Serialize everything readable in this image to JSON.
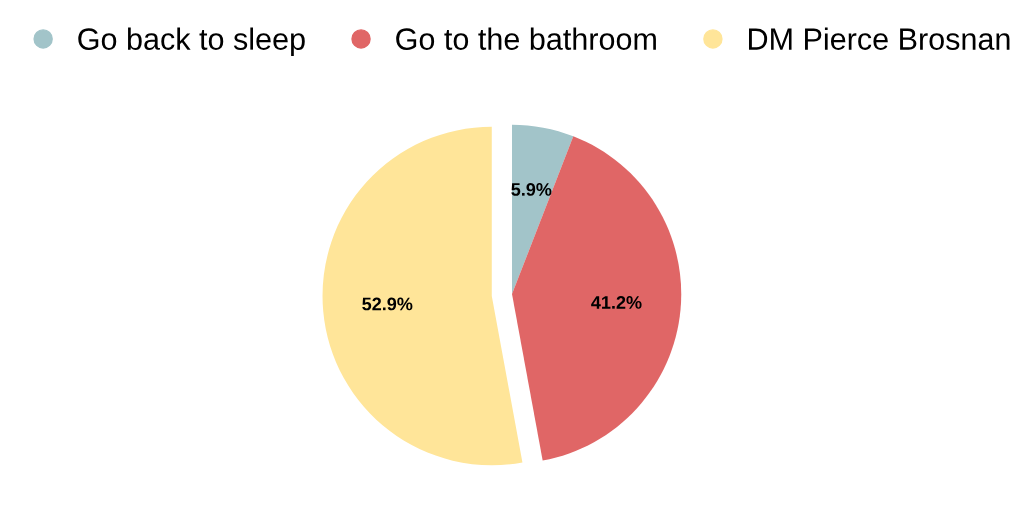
{
  "chart_data": {
    "type": "pie",
    "categories": [
      "Go back to sleep",
      "Go to the bathroom",
      "DM Pierce Brosnan"
    ],
    "values": [
      5.9,
      41.2,
      52.9
    ],
    "colors": [
      "#a2c4c9",
      "#e06666",
      "#ffe599"
    ],
    "value_labels": [
      "5.9%",
      "41.2%",
      "52.9%"
    ],
    "legend": "top"
  }
}
